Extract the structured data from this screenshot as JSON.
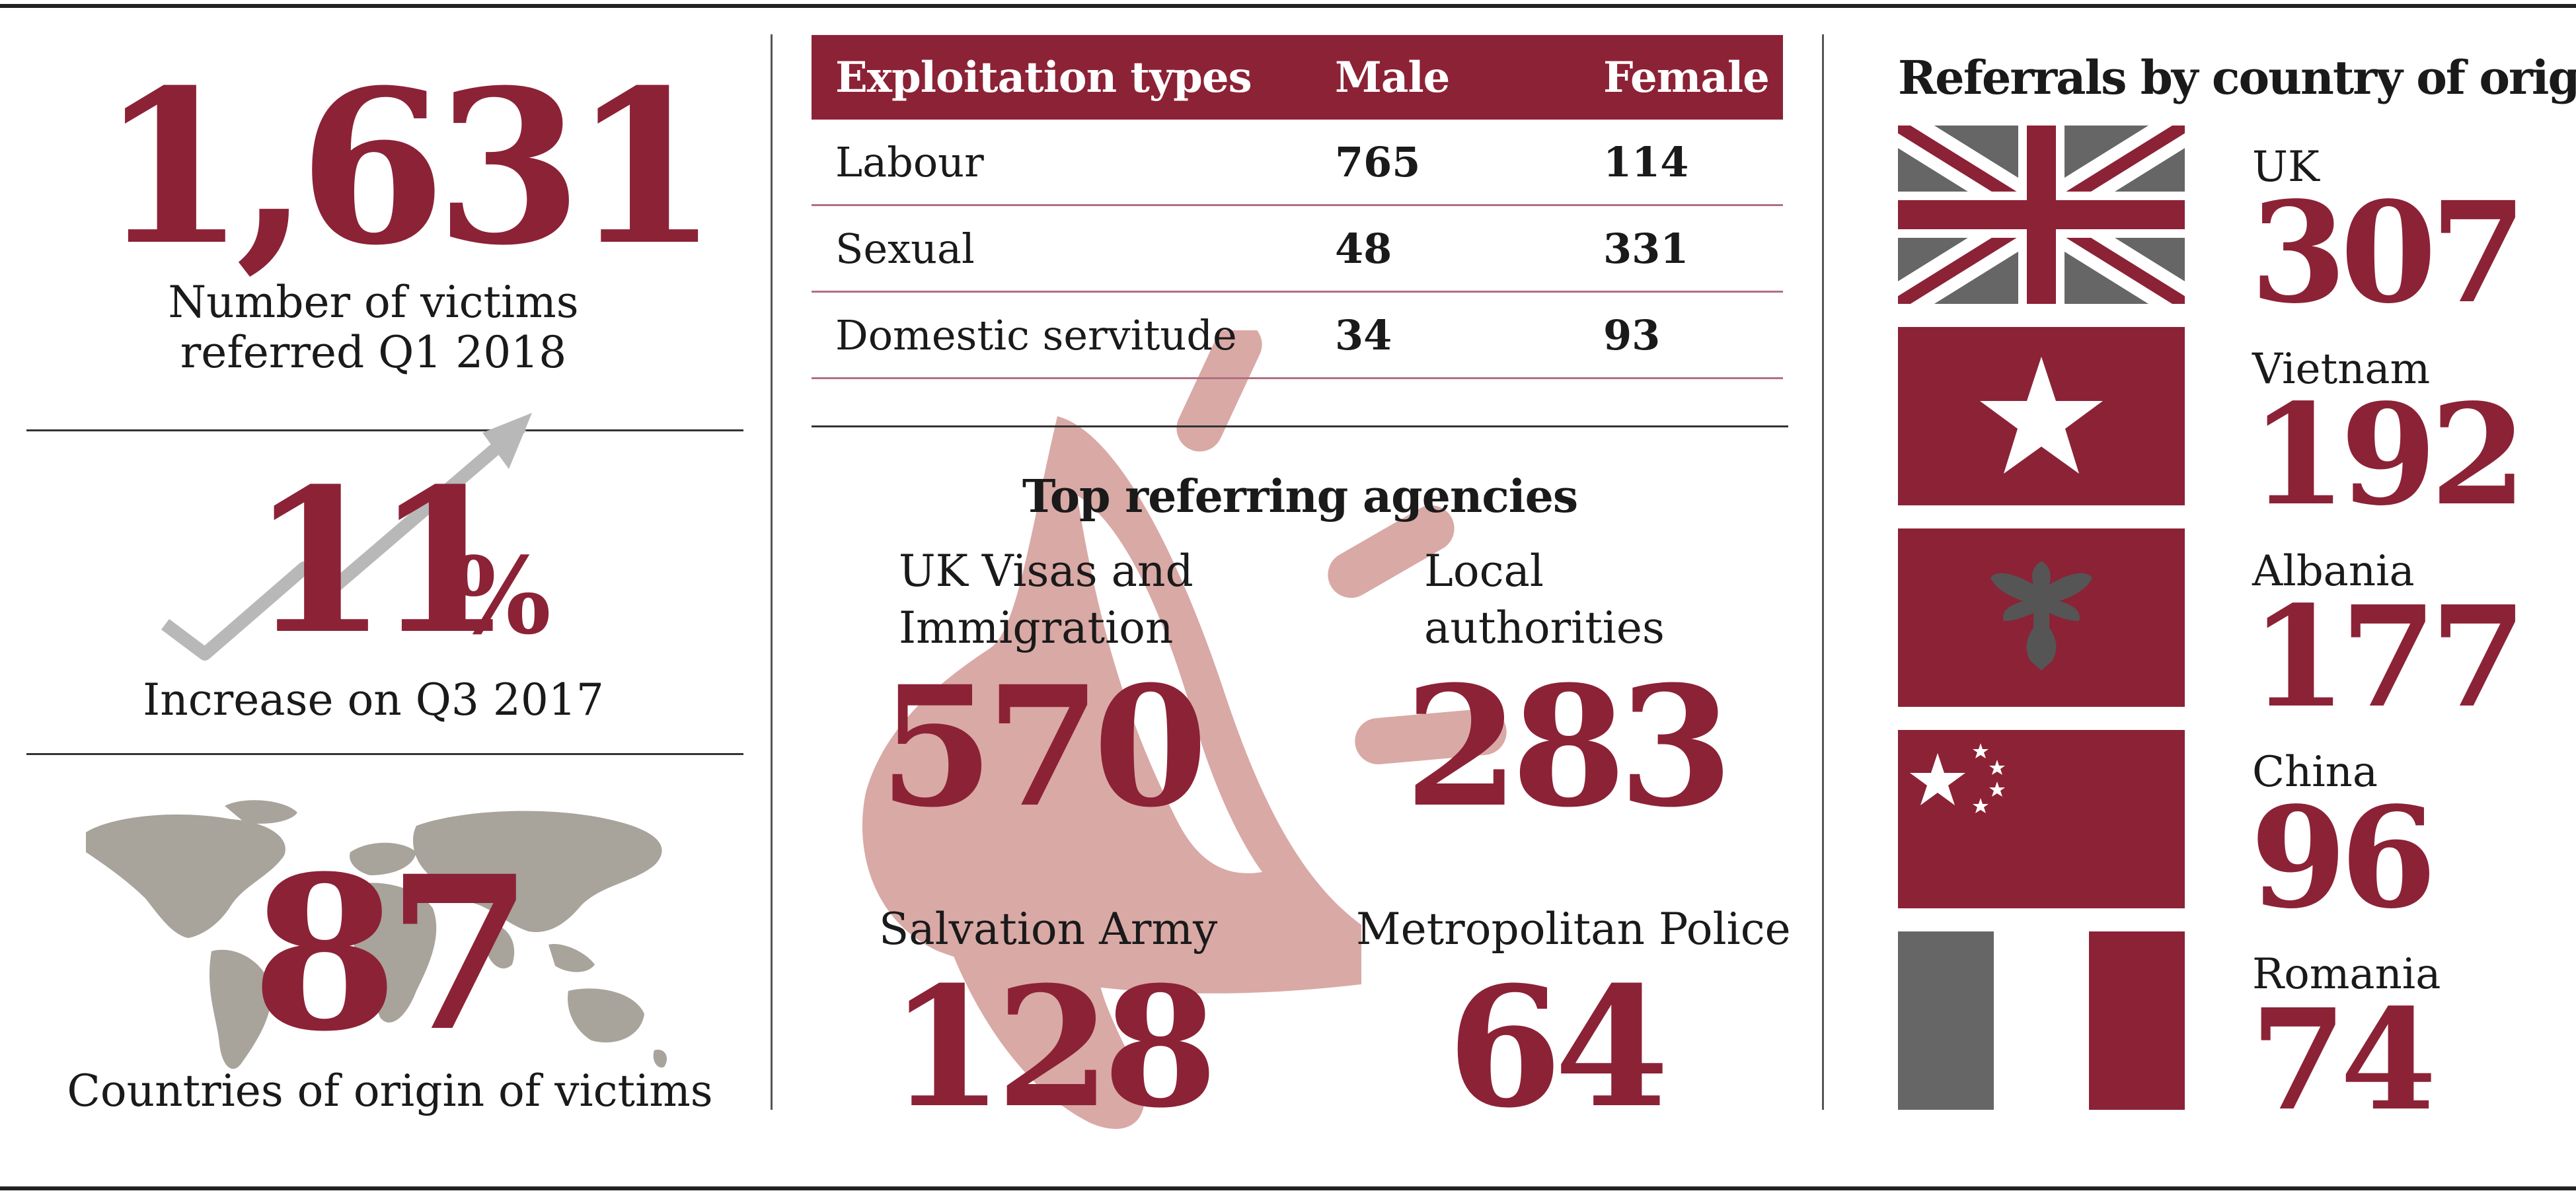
{
  "colors": {
    "accent": "#8c2236",
    "watermark": "#d9a9a6",
    "map_gray": "#a8a39b",
    "flag_gray": "#666666"
  },
  "stats": {
    "victims": {
      "value": "1,631",
      "caption_line1": "Number of victims",
      "caption_line2": "referred Q1 2018"
    },
    "increase": {
      "value": "11",
      "unit": "%",
      "caption": "Increase on Q3 2017"
    },
    "countries": {
      "value": "87",
      "caption": "Countries of origin of victims"
    }
  },
  "table": {
    "headers": [
      "Exploitation types",
      "Male",
      "Female"
    ],
    "rows": [
      {
        "type": "Labour",
        "male": "765",
        "female": "114"
      },
      {
        "type": "Sexual",
        "male": "48",
        "female": "331"
      },
      {
        "type": "Domestic servitude",
        "male": "34",
        "female": "93"
      }
    ]
  },
  "agencies": {
    "title": "Top referring agencies",
    "items": [
      {
        "label_line1": "UK Visas and",
        "label_line2": "Immigration",
        "value": "570"
      },
      {
        "label_line1": "Local",
        "label_line2": "authorities",
        "value": "283"
      },
      {
        "label_line1": "Salvation Army",
        "label_line2": "",
        "value": "128"
      },
      {
        "label_line1": "Metropolitan Police",
        "label_line2": "",
        "value": "64"
      }
    ]
  },
  "referrals": {
    "title": "Referrals by country of origin",
    "countries": [
      {
        "name": "UK",
        "value": "307",
        "flag": "uk-flag"
      },
      {
        "name": "Vietnam",
        "value": "192",
        "flag": "vietnam-flag"
      },
      {
        "name": "Albania",
        "value": "177",
        "flag": "albania-flag"
      },
      {
        "name": "China",
        "value": "96",
        "flag": "china-flag"
      },
      {
        "name": "Romania",
        "value": "74",
        "flag": "romania-flag"
      }
    ]
  }
}
